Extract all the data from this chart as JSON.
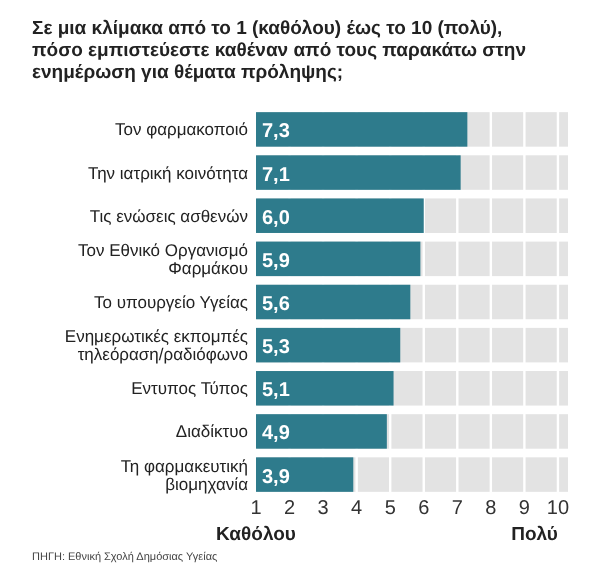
{
  "chart_data": {
    "type": "bar",
    "orientation": "horizontal",
    "title": "Σε μια κλίμακα από το 1 (καθόλου) έως το 10 (πολύ), πόσο εμπιστεύεστε καθέναν από τους παρακάτω στην ενημέρωση για θέματα πρόληψης;",
    "categories": [
      "Τον φαρμακοποιό",
      "Την ιατρική κοινότητα",
      "Τις ενώσεις ασθενών",
      "Τον Εθνικό Οργανισμό Φαρμάκου",
      "Το υπουργείο Υγείας",
      "Ενημερωτικές εκπομπές τηλεόραση/ραδιόφωνο",
      "Εντυπος Τύπος",
      "Διαδίκτυο",
      "Τη φαρμακευτική βιομηχανία"
    ],
    "values": [
      7.3,
      7.1,
      6.0,
      5.9,
      5.6,
      5.3,
      5.1,
      4.9,
      3.9
    ],
    "value_labels": [
      "7,3",
      "7,1",
      "6,0",
      "5,9",
      "5,6",
      "5,3",
      "5,1",
      "4,9",
      "3,9"
    ],
    "color": "#2e7b8c",
    "xlim": [
      1,
      10.3
    ],
    "xticks": [
      1,
      2,
      3,
      4,
      5,
      6,
      7,
      8,
      9,
      10
    ],
    "grid": "x",
    "annotations": [
      "Καθόλου",
      "Πολύ",
      "ΠΗΓΗ: Εθνική Σχολή Δημόσιας Υγείας"
    ]
  }
}
